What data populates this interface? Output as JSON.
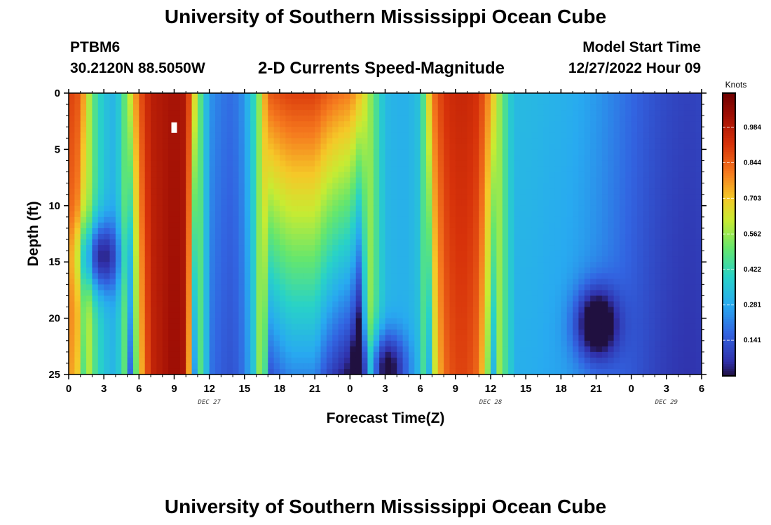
{
  "header": {
    "title": "University of Southern Mississippi Ocean Cube",
    "station": "PTBM6",
    "location": "30.2120N  88.5050W",
    "center_title": "2-D Currents Speed-Magnitude",
    "model_start_label": "Model Start Time",
    "model_start_value": "12/27/2022 Hour 09"
  },
  "footer": {
    "title": "University of Southern Mississippi Ocean Cube"
  },
  "chart_data": {
    "type": "heatmap",
    "title": "2-D Currents Speed-Magnitude",
    "xlabel": "Forecast Time(Z)",
    "ylabel": "Depth (ft)",
    "x_ticks": [
      {
        "hour": 0,
        "label": "0"
      },
      {
        "hour": 3,
        "label": "3"
      },
      {
        "hour": 6,
        "label": "6"
      },
      {
        "hour": 9,
        "label": "9"
      },
      {
        "hour": 12,
        "label": "12"
      },
      {
        "hour": 15,
        "label": "15"
      },
      {
        "hour": 18,
        "label": "18"
      },
      {
        "hour": 21,
        "label": "21"
      },
      {
        "hour": 24,
        "label": "0"
      },
      {
        "hour": 27,
        "label": "3"
      },
      {
        "hour": 30,
        "label": "6"
      },
      {
        "hour": 33,
        "label": "9"
      },
      {
        "hour": 36,
        "label": "12"
      },
      {
        "hour": 39,
        "label": "15"
      },
      {
        "hour": 42,
        "label": "18"
      },
      {
        "hour": 45,
        "label": "21"
      },
      {
        "hour": 48,
        "label": "0"
      },
      {
        "hour": 51,
        "label": "3"
      },
      {
        "hour": 54,
        "label": "6"
      }
    ],
    "date_labels": [
      {
        "hour": 12,
        "label": "DEC 27"
      },
      {
        "hour": 36,
        "label": "DEC 28"
      },
      {
        "hour": 51,
        "label": "DEC 29"
      }
    ],
    "xlim": [
      0,
      54
    ],
    "y_ticks": [
      0,
      5,
      10,
      15,
      20,
      25
    ],
    "ylim": [
      0,
      25
    ],
    "colorbar": {
      "unit": "Knots",
      "ticks": [
        "0.984",
        "0.844",
        "0.703",
        "0.562",
        "0.422",
        "0.281",
        "0.141"
      ],
      "tick_values": [
        0.984,
        0.844,
        0.703,
        0.562,
        0.422,
        0.281,
        0.141
      ],
      "range": [
        0.0,
        1.12
      ]
    },
    "time_step_hours": 1,
    "depth_step_ft": 1,
    "surface_speed_profile": [
      0.9,
      0.85,
      0.5,
      0.35,
      0.3,
      0.55,
      0.85,
      0.98,
      1.0,
      1.02,
      1.0,
      0.55,
      0.25,
      0.2,
      0.18,
      0.25,
      0.45,
      0.85,
      0.88,
      0.9,
      0.9,
      0.9,
      0.85,
      0.82,
      0.8,
      0.7,
      0.5,
      0.32,
      0.3,
      0.3,
      0.35,
      0.8,
      0.92,
      0.95,
      0.95,
      0.92,
      0.75,
      0.5,
      0.32,
      0.3,
      0.28,
      0.26,
      0.25,
      0.24,
      0.23,
      0.22,
      0.21,
      0.2,
      0.19,
      0.18,
      0.17,
      0.16,
      0.15,
      0.14,
      0.14
    ],
    "notable_features": [
      {
        "label": "max near hour 9",
        "hour": 9,
        "depth_ft": 5,
        "speed": 1.05
      },
      {
        "label": "min near hour 2.5",
        "hour": 2.5,
        "depth_ft": 14.5,
        "speed": 0.03
      },
      {
        "label": "min near hour 27",
        "hour": 27,
        "depth_ft": 24.5,
        "speed": 0.02
      },
      {
        "label": "min near hour 45",
        "hour": 45,
        "depth_ft": 20.5,
        "speed": 0.04
      }
    ]
  }
}
